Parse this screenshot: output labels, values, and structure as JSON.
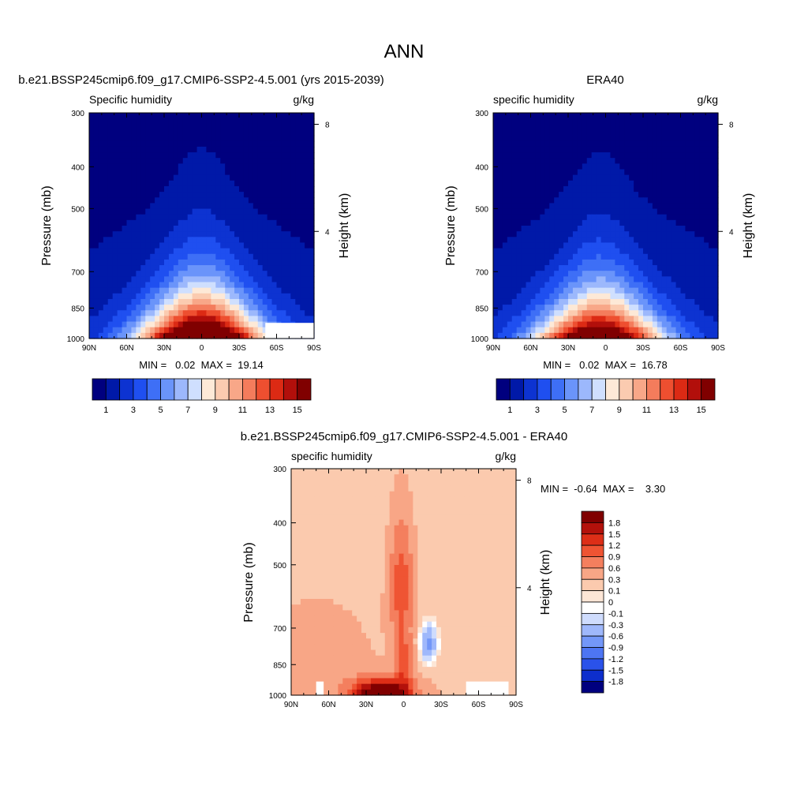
{
  "figure": {
    "title": "ANN"
  },
  "colors": {
    "abs_fill": [
      "#00007f",
      "#0019a8",
      "#0d33d1",
      "#1f4ff0",
      "#3e6ff6",
      "#6a94fa",
      "#9cb8fc",
      "#cfdffe",
      "#fde9d7",
      "#fbcbb0",
      "#f8a788",
      "#f47c5c",
      "#ee4f30",
      "#dc2a14",
      "#b20f0b",
      "#800000"
    ],
    "diff_fill": [
      "#00007f",
      "#0d2ecc",
      "#2a52ea",
      "#4d75f3",
      "#7397f8",
      "#9fb8fb",
      "#cfdcfd",
      "#ffffff",
      "#fde6d6",
      "#fbcaae",
      "#f8a686",
      "#f47f5e",
      "#ef5433",
      "#dd2e17",
      "#b3110b",
      "#800000"
    ]
  },
  "chart_data": [
    {
      "id": "model",
      "type": "contour",
      "title": "b.e21.BSSP245cmip6.f09_g17.CMIP6-SSP2-4.5.001 (yrs 2015-2039)",
      "left_label": "Specific humidity",
      "right_label": "g/kg",
      "xlabel": "",
      "ylabel": "Pressure (mb)",
      "y2label": "Height (km)",
      "x_ticks": [
        "90N",
        "60N",
        "30N",
        "0",
        "30S",
        "60S",
        "90S"
      ],
      "x_values": [
        90,
        60,
        30,
        0,
        -30,
        -60,
        -90
      ],
      "y_ticks": [
        "300",
        "400",
        "500",
        "700",
        "850",
        "1000"
      ],
      "y_values": [
        300,
        400,
        500,
        700,
        850,
        1000
      ],
      "y2_ticks": [
        "8",
        "4"
      ],
      "y2_values": [
        8,
        4
      ],
      "ylim": [
        300,
        1000
      ],
      "stats_text": "MIN =   0.02  MAX =  19.14",
      "min": 0.02,
      "max": 19.14,
      "peak_lat": 0,
      "peak_value": 19.14,
      "blocked": [
        {
          "lat_from": -51,
          "lat_to": -90,
          "p_from": 920,
          "p_to": 1000
        }
      ],
      "colorbar_labels": [
        "1",
        "3",
        "5",
        "7",
        "9",
        "11",
        "13",
        "15"
      ]
    },
    {
      "id": "obs",
      "type": "contour",
      "title": "ERA40",
      "left_label": "specific humidity",
      "right_label": "g/kg",
      "xlabel": "",
      "ylabel": "Pressure (mb)",
      "y2label": "Height (km)",
      "x_ticks": [
        "90N",
        "60N",
        "30N",
        "0",
        "30S",
        "60S",
        "90S"
      ],
      "x_values": [
        90,
        60,
        30,
        0,
        -30,
        -60,
        -90
      ],
      "y_ticks": [
        "300",
        "400",
        "500",
        "700",
        "850",
        "1000"
      ],
      "y_values": [
        300,
        400,
        500,
        700,
        850,
        1000
      ],
      "y2_ticks": [
        "8",
        "4"
      ],
      "y2_values": [
        8,
        4
      ],
      "ylim": [
        300,
        1000
      ],
      "stats_text": "MIN =   0.02  MAX =  16.78",
      "min": 0.02,
      "max": 16.78,
      "peak_lat": 5,
      "peak_value": 16.78,
      "blocked": [],
      "colorbar_labels": [
        "1",
        "3",
        "5",
        "7",
        "9",
        "11",
        "13",
        "15"
      ]
    },
    {
      "id": "diff",
      "type": "contour",
      "title": "b.e21.BSSP245cmip6.f09_g17.CMIP6-SSP2-4.5.001 - ERA40",
      "left_label": "specific humidity",
      "right_label": "g/kg",
      "xlabel": "",
      "ylabel": "Pressure (mb)",
      "y2label": "Height (km)",
      "x_ticks": [
        "90N",
        "60N",
        "30N",
        "0",
        "30S",
        "60S",
        "90S"
      ],
      "x_values": [
        90,
        60,
        30,
        0,
        -30,
        -60,
        -90
      ],
      "y_ticks": [
        "300",
        "400",
        "500",
        "700",
        "850",
        "1000"
      ],
      "y_values": [
        300,
        400,
        500,
        700,
        850,
        1000
      ],
      "y2_ticks": [
        "8",
        "4"
      ],
      "y2_values": [
        8,
        4
      ],
      "ylim": [
        300,
        1000
      ],
      "stats_text": "MIN =  -0.64  MAX =    3.30",
      "min": -0.64,
      "max": 3.3,
      "blocked": [
        {
          "lat_from": 70,
          "lat_to": 64,
          "p_from": 930,
          "p_to": 1000
        },
        {
          "lat_from": -50,
          "lat_to": -84,
          "p_from": 930,
          "p_to": 1000
        }
      ],
      "colorbar_labels": [
        "1.8",
        "1.5",
        "1.2",
        "0.9",
        "0.6",
        "0.3",
        "0.1",
        "0",
        "-0.1",
        "-0.3",
        "-0.6",
        "-0.9",
        "-1.2",
        "-1.5",
        "-1.8"
      ]
    }
  ]
}
